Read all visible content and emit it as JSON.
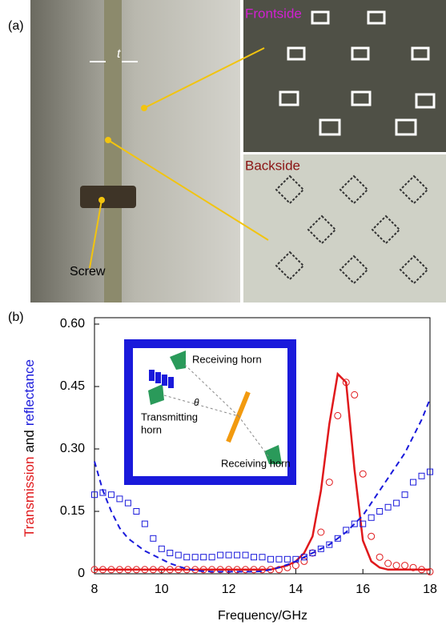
{
  "panel_a": {
    "label": "(a)",
    "thickness": "t",
    "frontside": "Frontside",
    "backside": "Backside",
    "screw": "Screw"
  },
  "chart_data": {
    "type": "line",
    "panel_label": "(b)",
    "xlabel": "Frequency/GHz",
    "ylabel": [
      "Transmission",
      "and",
      "reflectance"
    ],
    "ylabel_colors": [
      "#e0191c",
      "#000000",
      "#1a1adb"
    ],
    "xlim": [
      8,
      18
    ],
    "xticks": [
      8,
      10,
      12,
      14,
      16,
      18
    ],
    "ylim": [
      0,
      0.6
    ],
    "yticks": [
      0,
      0.15,
      {
        "value": 0.3,
        "label": "0.30"
      },
      0.45,
      {
        "value": 0.6,
        "label": "0.60"
      }
    ],
    "x": [
      8,
      8.25,
      8.5,
      8.75,
      9,
      9.25,
      9.5,
      9.75,
      10,
      10.25,
      10.5,
      10.75,
      11,
      11.25,
      11.5,
      11.75,
      12,
      12.25,
      12.5,
      12.75,
      13,
      13.25,
      13.5,
      13.75,
      14,
      14.25,
      14.5,
      14.75,
      15,
      15.25,
      15.5,
      15.75,
      16,
      16.25,
      16.5,
      16.75,
      17,
      17.25,
      17.5,
      17.75,
      18
    ],
    "series": [
      {
        "color": "#e0191c",
        "style": "solid",
        "values": [
          0.01,
          0.01,
          0.01,
          0.01,
          0.01,
          0.01,
          0.01,
          0.01,
          0.01,
          0.01,
          0.01,
          0.01,
          0.01,
          0.01,
          0.01,
          0.01,
          0.01,
          0.01,
          0.01,
          0.01,
          0.01,
          0.01,
          0.015,
          0.02,
          0.03,
          0.05,
          0.09,
          0.2,
          0.36,
          0.48,
          0.46,
          0.25,
          0.08,
          0.03,
          0.015,
          0.01,
          0.01,
          0.01,
          0.01,
          0.01,
          0.01
        ]
      },
      {
        "color": "#e0191c",
        "style": "circles",
        "values": [
          0.01,
          0.01,
          0.01,
          0.01,
          0.01,
          0.01,
          0.01,
          0.01,
          0.01,
          0.01,
          0.01,
          0.01,
          0.01,
          0.01,
          0.01,
          0.01,
          0.01,
          0.01,
          0.01,
          0.01,
          0.01,
          0.01,
          0.01,
          0.015,
          0.02,
          0.03,
          0.05,
          0.1,
          0.22,
          0.38,
          0.46,
          0.43,
          0.24,
          0.09,
          0.04,
          0.025,
          0.02,
          0.02,
          0.015,
          0.01,
          0.005
        ]
      },
      {
        "color": "#1a1adb",
        "style": "dashed",
        "values": [
          0.27,
          0.2,
          0.15,
          0.11,
          0.085,
          0.07,
          0.055,
          0.045,
          0.035,
          0.025,
          0.018,
          0.012,
          0.008,
          0.006,
          0.005,
          0.005,
          0.005,
          0.005,
          0.005,
          0.005,
          0.006,
          0.01,
          0.015,
          0.022,
          0.03,
          0.04,
          0.05,
          0.06,
          0.07,
          0.085,
          0.1,
          0.12,
          0.14,
          0.17,
          0.2,
          0.23,
          0.26,
          0.29,
          0.33,
          0.37,
          0.42
        ]
      },
      {
        "color": "#1a1adb",
        "style": "squares",
        "values": [
          0.19,
          0.195,
          0.19,
          0.18,
          0.17,
          0.15,
          0.12,
          0.085,
          0.06,
          0.05,
          0.045,
          0.04,
          0.04,
          0.04,
          0.04,
          0.045,
          0.045,
          0.045,
          0.045,
          0.04,
          0.04,
          0.035,
          0.035,
          0.035,
          0.035,
          0.04,
          0.05,
          0.06,
          0.07,
          0.085,
          0.105,
          0.12,
          0.12,
          0.135,
          0.15,
          0.16,
          0.17,
          0.19,
          0.22,
          0.235,
          0.245
        ]
      }
    ],
    "inset": {
      "receiving_top": "Receiving horn",
      "angle": "θ",
      "transmitting": [
        "Transmitting",
        "horn"
      ],
      "receiving_bottom": "Receiving horn"
    }
  }
}
